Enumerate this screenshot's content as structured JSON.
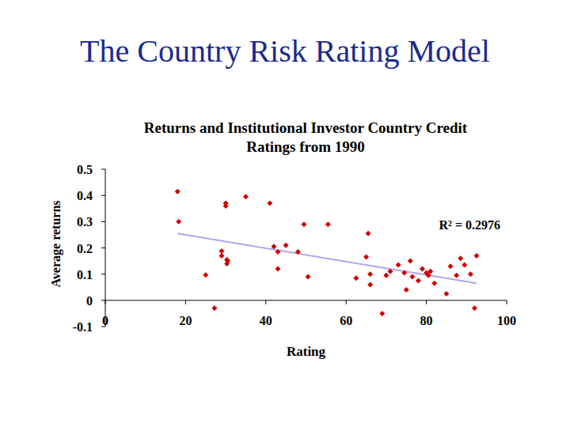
{
  "slide": {
    "title": "The Country Risk Rating Model"
  },
  "chart_data": {
    "type": "scatter",
    "title": "Returns and Institutional Investor Country Credit Ratings from 1990",
    "x_label": "Rating",
    "y_label": "Average returns",
    "annotation": "R² = 0.2976",
    "xlim": [
      0,
      100
    ],
    "ylim": [
      -0.1,
      0.5
    ],
    "xticks": [
      0,
      20,
      40,
      60,
      80,
      100
    ],
    "yticks": [
      -0.1,
      0,
      0.1,
      0.2,
      0.3,
      0.4,
      0.5
    ],
    "grid": false,
    "series": [
      {
        "color": "#cc0000",
        "marker": "diamond",
        "x": [
          18,
          18.3,
          25,
          27.2,
          29,
          29,
          30,
          30,
          30.3,
          30.3,
          30.5,
          35,
          41,
          42,
          43,
          43,
          45,
          48,
          49.5,
          50.5,
          55.5,
          62.5,
          65,
          65.5,
          66,
          66,
          69,
          70,
          71,
          73,
          74.5,
          75,
          76,
          76.5,
          78,
          79,
          80,
          80.5,
          81,
          82,
          85,
          86,
          87.5,
          88.5,
          89.5,
          91,
          92,
          92.5
        ],
        "values": [
          0.415,
          0.3,
          0.097,
          -0.03,
          0.188,
          0.17,
          0.37,
          0.36,
          0.155,
          0.14,
          0.15,
          0.395,
          0.37,
          0.205,
          0.185,
          0.12,
          0.21,
          0.185,
          0.29,
          0.09,
          0.29,
          0.085,
          0.165,
          0.255,
          0.1,
          0.06,
          -0.05,
          0.095,
          0.11,
          0.135,
          0.105,
          0.04,
          0.15,
          0.09,
          0.075,
          0.12,
          0.105,
          0.095,
          0.11,
          0.065,
          0.025,
          0.13,
          0.095,
          0.16,
          0.135,
          0.1,
          -0.03,
          0.17
        ]
      },
      {
        "type": "line",
        "color": "#b4a4e0",
        "x": [
          18,
          92.5
        ],
        "values": [
          0.255,
          0.065
        ]
      }
    ]
  }
}
